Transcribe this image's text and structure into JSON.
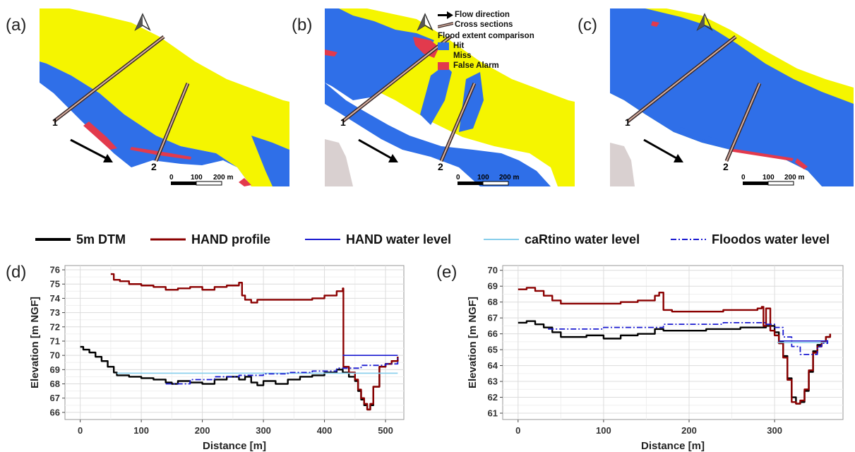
{
  "panels": {
    "a": "(a)",
    "b": "(b)",
    "c": "(c)",
    "d": "(d)",
    "e": "(e)"
  },
  "map_legend": {
    "flow": "Flow direction",
    "cross": "Cross sections",
    "title": "Flood extent comparison",
    "items": [
      {
        "label": "Hit",
        "color": "#2f6fe8"
      },
      {
        "label": "Miss",
        "color": "#f5f500"
      },
      {
        "label": "False Alarm",
        "color": "#e23a4d"
      }
    ]
  },
  "map_labels": {
    "cs1": "1",
    "cs2": "2",
    "scale": [
      "0",
      "100",
      "200 m"
    ]
  },
  "line_legend": [
    {
      "label": "5m DTM",
      "color": "#000000",
      "style": "solid",
      "width": 4
    },
    {
      "label": "HAND profile",
      "color": "#8b0000",
      "style": "solid",
      "width": 3
    },
    {
      "label": "HAND water level",
      "color": "#1a1ad0",
      "style": "solid",
      "width": 2
    },
    {
      "label": "caRtino water level",
      "color": "#87ceeb",
      "style": "solid",
      "width": 2
    },
    {
      "label": "Floodos water level",
      "color": "#1a1ad0",
      "style": "dashdot",
      "width": 2
    }
  ],
  "chart_data": [
    {
      "type": "line",
      "xlabel": "Distance [m]",
      "ylabel": "Elevation [m NGF]",
      "xlim": [
        -25,
        530
      ],
      "ylim": [
        65.5,
        76.3
      ],
      "xticks": [
        0,
        100,
        200,
        300,
        400,
        500
      ],
      "yticks": [
        66,
        67,
        68,
        69,
        70,
        71,
        72,
        73,
        74,
        75,
        76
      ],
      "grid": true,
      "series": [
        {
          "name": "5m DTM",
          "color": "#000000",
          "width": 2.4,
          "x": [
            0,
            5,
            15,
            25,
            35,
            45,
            55,
            60,
            70,
            80,
            100,
            120,
            140,
            150,
            160,
            180,
            200,
            220,
            240,
            260,
            270,
            280,
            290,
            300,
            320,
            340,
            360,
            380,
            400,
            420,
            430,
            440,
            450,
            455,
            460,
            465,
            470,
            475,
            480,
            490,
            500,
            510,
            520
          ],
          "y": [
            70.6,
            70.4,
            70.2,
            69.9,
            69.6,
            69.2,
            68.8,
            68.6,
            68.6,
            68.5,
            68.4,
            68.3,
            68.1,
            68.0,
            68.2,
            68.1,
            68.0,
            68.3,
            68.5,
            68.3,
            68.5,
            68.1,
            67.9,
            68.2,
            68.0,
            68.3,
            68.5,
            68.6,
            68.8,
            69.0,
            68.8,
            68.5,
            68.2,
            67.5,
            66.9,
            66.5,
            66.2,
            66.5,
            67.8,
            69.2,
            69.4,
            69.6,
            69.9
          ]
        },
        {
          "name": "HAND profile",
          "color": "#8b0000",
          "width": 2.4,
          "x": [
            50,
            55,
            65,
            80,
            100,
            120,
            140,
            160,
            180,
            200,
            220,
            240,
            260,
            265,
            270,
            280,
            290,
            300,
            320,
            340,
            360,
            380,
            400,
            420,
            430,
            431,
            440,
            450,
            455,
            460,
            465,
            470,
            475,
            480,
            490,
            500,
            510,
            520
          ],
          "y": [
            75.7,
            75.3,
            75.2,
            75.0,
            74.9,
            74.8,
            74.6,
            74.7,
            74.8,
            74.6,
            74.8,
            74.9,
            75.1,
            74.2,
            73.9,
            73.7,
            73.9,
            73.9,
            73.9,
            73.9,
            73.9,
            74.0,
            74.2,
            74.5,
            74.7,
            69.2,
            68.8,
            68.3,
            67.6,
            67.0,
            66.6,
            66.2,
            66.6,
            67.8,
            69.2,
            69.4,
            69.6,
            69.9
          ]
        },
        {
          "name": "caRtino water level",
          "color": "#87ceeb",
          "width": 1.6,
          "x": [
            60,
            520
          ],
          "y": [
            68.75,
            68.75
          ]
        },
        {
          "name": "Floodos water level",
          "color": "#1a1ad0",
          "width": 1.8,
          "dash": "8,3,2,3",
          "x": [
            140,
            180,
            220,
            260,
            300,
            340,
            380,
            420,
            460,
            500,
            520
          ],
          "y": [
            68.0,
            68.3,
            68.5,
            68.6,
            68.7,
            68.8,
            68.9,
            69.1,
            69.3,
            69.4,
            69.9
          ]
        },
        {
          "name": "HAND water level",
          "color": "#1a1ad0",
          "width": 1.6,
          "x": [
            430,
            520
          ],
          "y": [
            70.0,
            70.0
          ]
        }
      ]
    },
    {
      "type": "line",
      "xlabel": "Distance [m]",
      "ylabel": "Elevation [m NGF]",
      "xlim": [
        -18,
        380
      ],
      "ylim": [
        60.6,
        70.3
      ],
      "xticks": [
        0,
        100,
        200,
        300
      ],
      "yticks": [
        61,
        62,
        63,
        64,
        65,
        66,
        67,
        68,
        69,
        70
      ],
      "grid": true,
      "series": [
        {
          "name": "5m DTM",
          "color": "#000000",
          "width": 2.4,
          "x": [
            0,
            10,
            20,
            30,
            40,
            50,
            60,
            80,
            100,
            120,
            140,
            160,
            170,
            180,
            200,
            220,
            240,
            260,
            280,
            290,
            300,
            305,
            310,
            315,
            320,
            325,
            330,
            335,
            340,
            345,
            350,
            355,
            360,
            365
          ],
          "y": [
            66.7,
            66.8,
            66.6,
            66.4,
            66.1,
            65.8,
            65.8,
            65.9,
            65.7,
            65.9,
            66.0,
            66.3,
            66.2,
            66.2,
            66.2,
            66.3,
            66.3,
            66.4,
            66.4,
            66.5,
            66.1,
            65.5,
            64.6,
            63.2,
            62.0,
            61.6,
            61.7,
            62.4,
            63.6,
            64.9,
            65.3,
            65.5,
            65.8,
            66.0
          ]
        },
        {
          "name": "HAND profile",
          "color": "#8b0000",
          "width": 2.4,
          "x": [
            0,
            10,
            20,
            30,
            40,
            50,
            60,
            80,
            100,
            120,
            140,
            160,
            165,
            170,
            180,
            200,
            220,
            240,
            260,
            280,
            285,
            287,
            290,
            295,
            300,
            305,
            310,
            315,
            320,
            325,
            330,
            335,
            340,
            345,
            350,
            355,
            360,
            365
          ],
          "y": [
            68.8,
            68.9,
            68.7,
            68.4,
            68.1,
            67.9,
            67.9,
            67.9,
            67.9,
            68.0,
            68.1,
            68.4,
            68.6,
            67.5,
            67.4,
            67.4,
            67.4,
            67.5,
            67.5,
            67.6,
            67.7,
            66.5,
            67.6,
            66.2,
            65.9,
            65.4,
            64.5,
            63.1,
            61.7,
            61.6,
            61.8,
            62.5,
            63.7,
            64.8,
            65.2,
            65.5,
            65.8,
            66.0
          ]
        },
        {
          "name": "caRtino water level",
          "color": "#87ceeb",
          "width": 1.6,
          "x": [
            303,
            362
          ],
          "y": [
            65.45,
            65.45
          ]
        },
        {
          "name": "Floodos water level",
          "color": "#1a1ad0",
          "width": 1.8,
          "dash": "8,3,2,3",
          "x": [
            35,
            60,
            100,
            140,
            170,
            200,
            240,
            260,
            290,
            300,
            310,
            320,
            330,
            340,
            345,
            350,
            355,
            362
          ],
          "y": [
            66.3,
            66.3,
            66.4,
            66.4,
            66.6,
            66.6,
            66.7,
            66.7,
            66.6,
            66.4,
            65.8,
            65.2,
            64.7,
            64.7,
            64.7,
            65.2,
            65.4,
            65.6
          ]
        },
        {
          "name": "HAND water level",
          "color": "#1a1ad0",
          "width": 1.6,
          "x": [
            305,
            362
          ],
          "y": [
            65.55,
            65.55
          ]
        }
      ]
    }
  ]
}
